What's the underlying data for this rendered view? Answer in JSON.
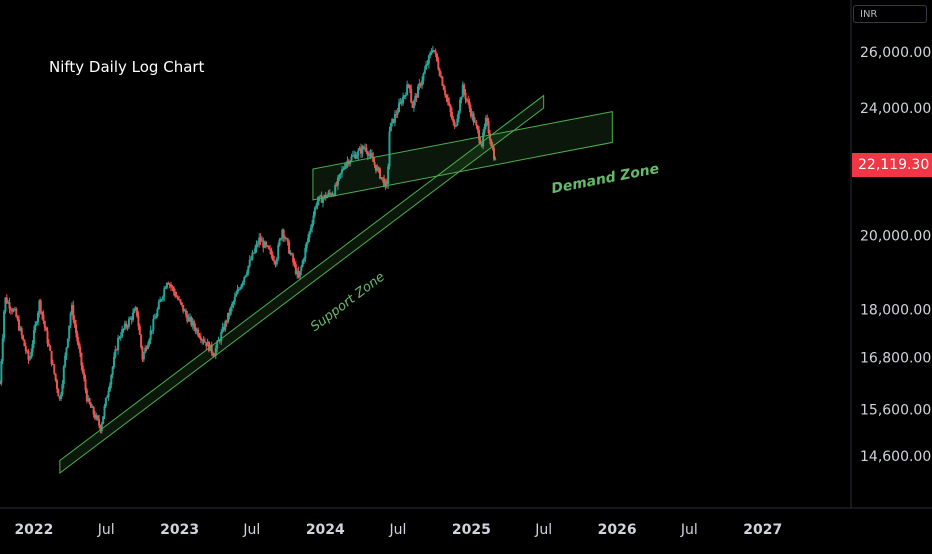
{
  "chart_title": "Nifty Daily Log Chart",
  "currency": "INR",
  "last_price_label": "22,119.30",
  "colors": {
    "background": "#000000",
    "up": "#26a69a",
    "down": "#ef5350",
    "zone_line": "#4caf50",
    "zone_text": "#66bb6a",
    "price_tag": "#f23645"
  },
  "annotations": {
    "support_zone": "Support Zone",
    "demand_zone": "Demand Zone"
  },
  "chart_data": {
    "type": "candlestick",
    "title": "Nifty Daily Log Chart",
    "scale": "log",
    "ylim": [
      13500,
      27000
    ],
    "y_ticks": [
      {
        "value": 26000,
        "label": "26,000.00"
      },
      {
        "value": 24000,
        "label": "24,000.00"
      },
      {
        "value": 20000,
        "label": "20,000.00"
      },
      {
        "value": 18000,
        "label": "18,000.00"
      },
      {
        "value": 16800,
        "label": "16,800.00"
      },
      {
        "value": 15600,
        "label": "15,600.00"
      },
      {
        "value": 14600,
        "label": "14,600.00"
      }
    ],
    "x_ticks": [
      {
        "date": "2022-01-01",
        "label": "2022",
        "major": true
      },
      {
        "date": "2022-07-01",
        "label": "Jul",
        "major": false
      },
      {
        "date": "2023-01-01",
        "label": "2023",
        "major": true
      },
      {
        "date": "2023-07-01",
        "label": "Jul",
        "major": false
      },
      {
        "date": "2024-01-01",
        "label": "2024",
        "major": true
      },
      {
        "date": "2024-07-01",
        "label": "Jul",
        "major": false
      },
      {
        "date": "2025-01-01",
        "label": "2025",
        "major": true
      },
      {
        "date": "2025-07-01",
        "label": "Jul",
        "major": false
      },
      {
        "date": "2026-01-01",
        "label": "2026",
        "major": true
      },
      {
        "date": "2026-07-01",
        "label": "Jul",
        "major": false
      },
      {
        "date": "2027-01-01",
        "label": "2027",
        "major": true
      }
    ],
    "xlim": [
      "2021-10-08",
      "2027-08-10"
    ],
    "last_price": 22119.3,
    "price_path": [
      [
        "2021-10-08",
        16200
      ],
      [
        "2021-10-20",
        18300
      ],
      [
        "2021-11-15",
        17900
      ],
      [
        "2021-12-20",
        16700
      ],
      [
        "2022-01-15",
        18200
      ],
      [
        "2022-03-07",
        15800
      ],
      [
        "2022-04-05",
        18100
      ],
      [
        "2022-05-15",
        15800
      ],
      [
        "2022-06-17",
        15200
      ],
      [
        "2022-08-01",
        17300
      ],
      [
        "2022-09-15",
        18000
      ],
      [
        "2022-09-30",
        16800
      ],
      [
        "2022-12-01",
        18800
      ],
      [
        "2023-01-20",
        17800
      ],
      [
        "2023-03-28",
        16900
      ],
      [
        "2023-05-20",
        18300
      ],
      [
        "2023-07-20",
        19900
      ],
      [
        "2023-08-30",
        19300
      ],
      [
        "2023-09-15",
        20200
      ],
      [
        "2023-10-26",
        18800
      ],
      [
        "2023-12-10",
        21000
      ],
      [
        "2024-01-23",
        21300
      ],
      [
        "2024-02-20",
        22200
      ],
      [
        "2024-04-10",
        22700
      ],
      [
        "2024-06-04",
        21400
      ],
      [
        "2024-06-10",
        23300
      ],
      [
        "2024-07-30",
        24900
      ],
      [
        "2024-08-05",
        24000
      ],
      [
        "2024-09-27",
        26200
      ],
      [
        "2024-11-20",
        23300
      ],
      [
        "2024-12-10",
        24700
      ],
      [
        "2025-01-27",
        22800
      ],
      [
        "2025-02-07",
        23600
      ],
      [
        "2025-03-04",
        22119
      ]
    ],
    "support_zone": {
      "label": "Support Zone",
      "from": [
        "2022-03-07",
        14250
      ],
      "to": [
        "2025-07-01",
        24000
      ],
      "width_pct": 1.8
    },
    "demand_zone": {
      "label": "Demand Zone",
      "from": [
        "2023-12-01",
        21050
      ],
      "to": [
        "2025-12-20",
        22850
      ],
      "width_pct": 4.5
    }
  }
}
